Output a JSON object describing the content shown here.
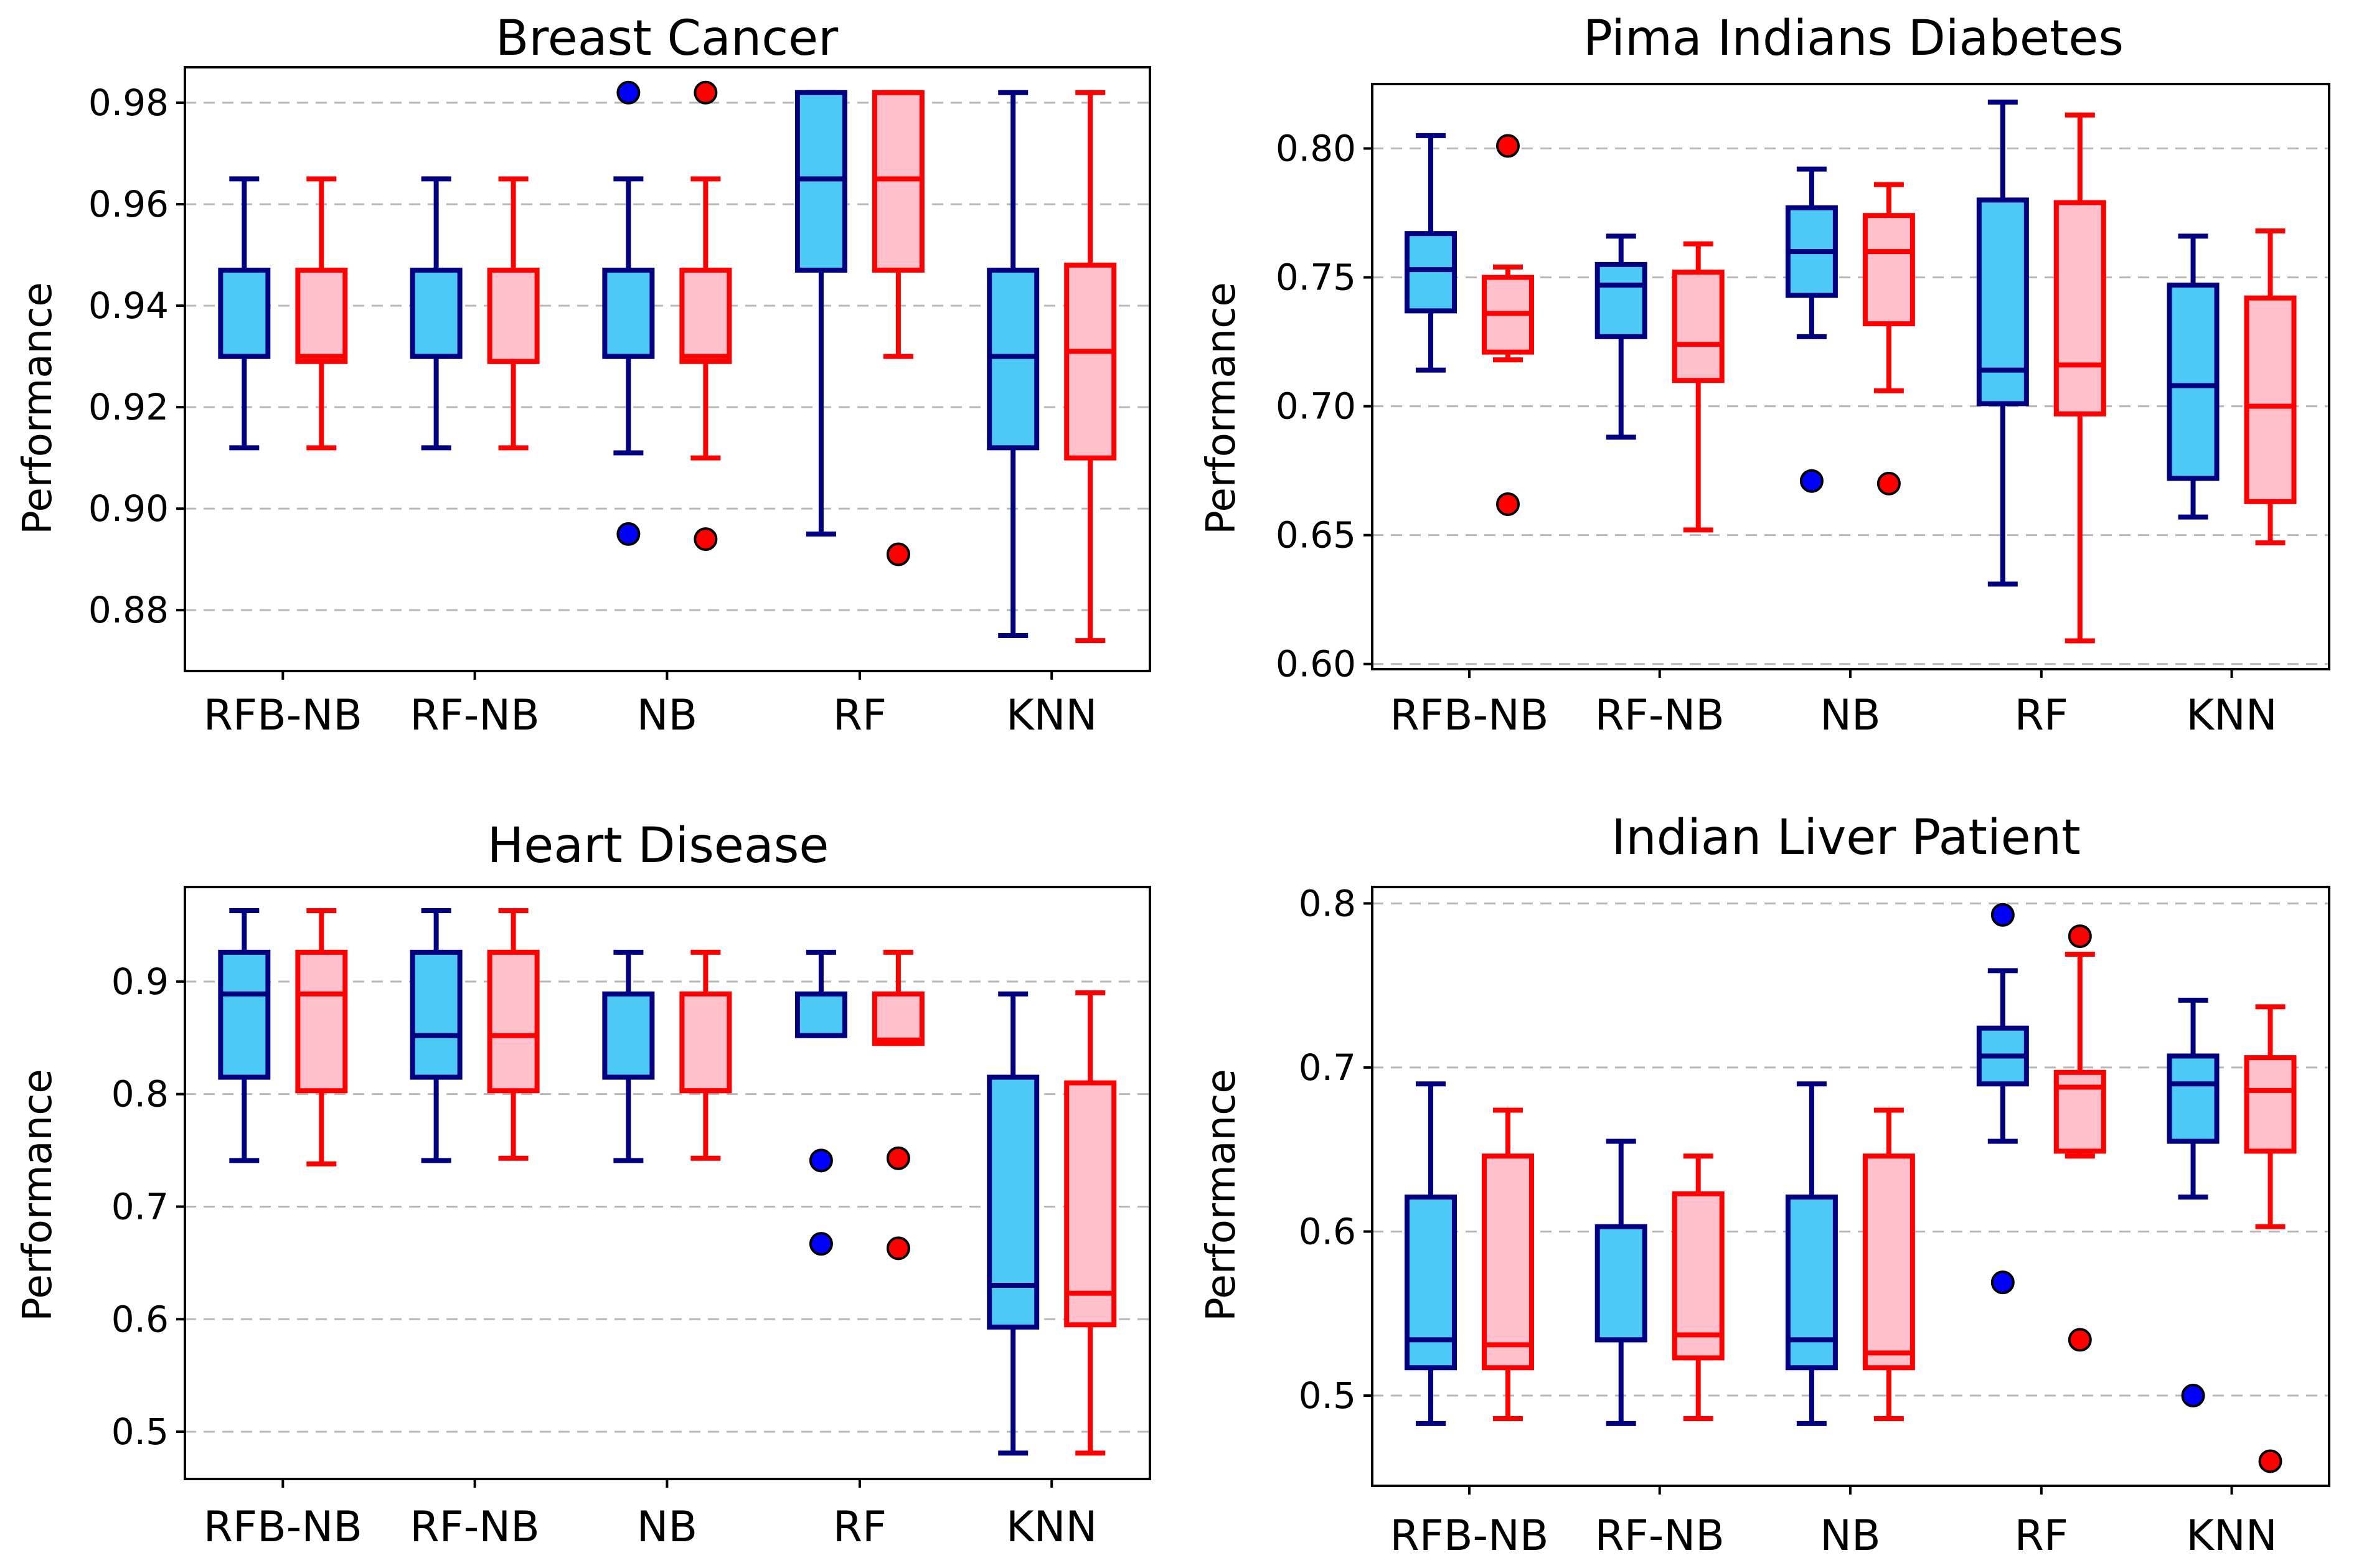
{
  "figure": {
    "colors": {
      "blue_fill": "#4dc9f6",
      "blue_edge": "#000080",
      "red_fill": "#ffc0cb",
      "red_edge": "#ff0000",
      "outlier_edge": "#000000"
    }
  },
  "chart_data": [
    {
      "type": "box",
      "title": "Breast Cancer",
      "ylabel": "Performance",
      "ylim": [
        0.868,
        0.987
      ],
      "yticks": [
        0.88,
        0.9,
        0.92,
        0.94,
        0.96,
        0.98
      ],
      "ytick_labels": [
        "0.88",
        "0.90",
        "0.92",
        "0.94",
        "0.96",
        "0.98"
      ],
      "categories": [
        "RFB-NB",
        "RF-NB",
        "NB",
        "RF",
        "KNN"
      ],
      "series": [
        {
          "name": "blue",
          "boxes": [
            {
              "whislo": 0.912,
              "q1": 0.93,
              "med": 0.93,
              "q3": 0.947,
              "whishi": 0.965,
              "fliers": []
            },
            {
              "whislo": 0.912,
              "q1": 0.93,
              "med": 0.93,
              "q3": 0.947,
              "whishi": 0.965,
              "fliers": []
            },
            {
              "whislo": 0.911,
              "q1": 0.93,
              "med": 0.93,
              "q3": 0.947,
              "whishi": 0.965,
              "fliers": [
                0.982,
                0.895
              ]
            },
            {
              "whislo": 0.895,
              "q1": 0.947,
              "med": 0.965,
              "q3": 0.982,
              "whishi": 0.982,
              "fliers": []
            },
            {
              "whislo": 0.875,
              "q1": 0.912,
              "med": 0.93,
              "q3": 0.947,
              "whishi": 0.982,
              "fliers": []
            }
          ]
        },
        {
          "name": "red",
          "boxes": [
            {
              "whislo": 0.912,
              "q1": 0.929,
              "med": 0.93,
              "q3": 0.947,
              "whishi": 0.965,
              "fliers": []
            },
            {
              "whislo": 0.912,
              "q1": 0.929,
              "med": 0.929,
              "q3": 0.947,
              "whishi": 0.965,
              "fliers": []
            },
            {
              "whislo": 0.91,
              "q1": 0.929,
              "med": 0.93,
              "q3": 0.947,
              "whishi": 0.965,
              "fliers": [
                0.982,
                0.894
              ]
            },
            {
              "whislo": 0.93,
              "q1": 0.947,
              "med": 0.965,
              "q3": 0.982,
              "whishi": 0.982,
              "fliers": [
                0.891
              ]
            },
            {
              "whislo": 0.874,
              "q1": 0.91,
              "med": 0.931,
              "q3": 0.948,
              "whishi": 0.982,
              "fliers": []
            }
          ]
        }
      ]
    },
    {
      "type": "box",
      "title": "Pima Indians Diabetes",
      "ylabel": "Performance",
      "ylim": [
        0.598,
        0.825
      ],
      "yticks": [
        0.6,
        0.65,
        0.7,
        0.75,
        0.8
      ],
      "ytick_labels": [
        "0.60",
        "0.65",
        "0.70",
        "0.75",
        "0.80"
      ],
      "categories": [
        "RFB-NB",
        "RF-NB",
        "NB",
        "RF",
        "KNN"
      ],
      "series": [
        {
          "name": "blue",
          "boxes": [
            {
              "whislo": 0.714,
              "q1": 0.737,
              "med": 0.753,
              "q3": 0.767,
              "whishi": 0.805,
              "fliers": []
            },
            {
              "whislo": 0.688,
              "q1": 0.727,
              "med": 0.747,
              "q3": 0.755,
              "whishi": 0.766,
              "fliers": []
            },
            {
              "whislo": 0.727,
              "q1": 0.743,
              "med": 0.76,
              "q3": 0.777,
              "whishi": 0.792,
              "fliers": [
                0.671
              ]
            },
            {
              "whislo": 0.631,
              "q1": 0.701,
              "med": 0.714,
              "q3": 0.78,
              "whishi": 0.818,
              "fliers": []
            },
            {
              "whislo": 0.657,
              "q1": 0.672,
              "med": 0.708,
              "q3": 0.747,
              "whishi": 0.766,
              "fliers": []
            }
          ]
        },
        {
          "name": "red",
          "boxes": [
            {
              "whislo": 0.718,
              "q1": 0.721,
              "med": 0.736,
              "q3": 0.75,
              "whishi": 0.754,
              "fliers": [
                0.801,
                0.662
              ]
            },
            {
              "whislo": 0.652,
              "q1": 0.71,
              "med": 0.724,
              "q3": 0.752,
              "whishi": 0.763,
              "fliers": []
            },
            {
              "whislo": 0.706,
              "q1": 0.732,
              "med": 0.76,
              "q3": 0.774,
              "whishi": 0.786,
              "fliers": [
                0.67
              ]
            },
            {
              "whislo": 0.609,
              "q1": 0.697,
              "med": 0.716,
              "q3": 0.779,
              "whishi": 0.813,
              "fliers": []
            },
            {
              "whislo": 0.647,
              "q1": 0.663,
              "med": 0.7,
              "q3": 0.742,
              "whishi": 0.768,
              "fliers": []
            }
          ]
        }
      ]
    },
    {
      "type": "box",
      "title": "Heart Disease",
      "ylabel": "Performance",
      "ylim": [
        0.458,
        0.984
      ],
      "yticks": [
        0.5,
        0.6,
        0.7,
        0.8,
        0.9
      ],
      "ytick_labels": [
        "0.5",
        "0.6",
        "0.7",
        "0.8",
        "0.9"
      ],
      "categories": [
        "RFB-NB",
        "RF-NB",
        "NB",
        "RF",
        "KNN"
      ],
      "series": [
        {
          "name": "blue",
          "boxes": [
            {
              "whislo": 0.741,
              "q1": 0.815,
              "med": 0.889,
              "q3": 0.926,
              "whishi": 0.963,
              "fliers": []
            },
            {
              "whislo": 0.741,
              "q1": 0.815,
              "med": 0.852,
              "q3": 0.926,
              "whishi": 0.963,
              "fliers": []
            },
            {
              "whislo": 0.741,
              "q1": 0.815,
              "med": 0.815,
              "q3": 0.889,
              "whishi": 0.926,
              "fliers": []
            },
            {
              "whislo": 0.852,
              "q1": 0.852,
              "med": 0.852,
              "q3": 0.889,
              "whishi": 0.926,
              "fliers": [
                0.741,
                0.667
              ]
            },
            {
              "whislo": 0.481,
              "q1": 0.593,
              "med": 0.63,
              "q3": 0.815,
              "whishi": 0.889,
              "fliers": []
            }
          ]
        },
        {
          "name": "red",
          "boxes": [
            {
              "whislo": 0.738,
              "q1": 0.803,
              "med": 0.889,
              "q3": 0.926,
              "whishi": 0.963,
              "fliers": []
            },
            {
              "whislo": 0.743,
              "q1": 0.803,
              "med": 0.852,
              "q3": 0.926,
              "whishi": 0.963,
              "fliers": []
            },
            {
              "whislo": 0.743,
              "q1": 0.803,
              "med": 0.803,
              "q3": 0.889,
              "whishi": 0.926,
              "fliers": []
            },
            {
              "whislo": 0.845,
              "q1": 0.845,
              "med": 0.848,
              "q3": 0.889,
              "whishi": 0.926,
              "fliers": [
                0.743,
                0.663
              ]
            },
            {
              "whislo": 0.481,
              "q1": 0.595,
              "med": 0.623,
              "q3": 0.81,
              "whishi": 0.89,
              "fliers": []
            }
          ]
        }
      ]
    },
    {
      "type": "box",
      "title": "Indian Liver Patient",
      "ylabel": "Performance",
      "ylim": [
        0.445,
        0.81
      ],
      "yticks": [
        0.5,
        0.6,
        0.7,
        0.8
      ],
      "ytick_labels": [
        "0.5",
        "0.6",
        "0.7",
        "0.8"
      ],
      "categories": [
        "RFB-NB",
        "RF-NB",
        "NB",
        "RF",
        "KNN"
      ],
      "series": [
        {
          "name": "blue",
          "boxes": [
            {
              "whislo": 0.483,
              "q1": 0.517,
              "med": 0.534,
              "q3": 0.621,
              "whishi": 0.69,
              "fliers": []
            },
            {
              "whislo": 0.483,
              "q1": 0.534,
              "med": 0.534,
              "q3": 0.603,
              "whishi": 0.655,
              "fliers": []
            },
            {
              "whislo": 0.483,
              "q1": 0.517,
              "med": 0.534,
              "q3": 0.621,
              "whishi": 0.69,
              "fliers": []
            },
            {
              "whislo": 0.655,
              "q1": 0.69,
              "med": 0.707,
              "q3": 0.724,
              "whishi": 0.759,
              "fliers": [
                0.793,
                0.569
              ]
            },
            {
              "whislo": 0.621,
              "q1": 0.655,
              "med": 0.69,
              "q3": 0.707,
              "whishi": 0.741,
              "fliers": [
                0.5
              ]
            }
          ]
        },
        {
          "name": "red",
          "boxes": [
            {
              "whislo": 0.486,
              "q1": 0.517,
              "med": 0.531,
              "q3": 0.646,
              "whishi": 0.674,
              "fliers": []
            },
            {
              "whislo": 0.486,
              "q1": 0.523,
              "med": 0.537,
              "q3": 0.623,
              "whishi": 0.646,
              "fliers": []
            },
            {
              "whislo": 0.486,
              "q1": 0.517,
              "med": 0.526,
              "q3": 0.646,
              "whishi": 0.674,
              "fliers": []
            },
            {
              "whislo": 0.646,
              "q1": 0.649,
              "med": 0.688,
              "q3": 0.697,
              "whishi": 0.769,
              "fliers": [
                0.78,
                0.534
              ]
            },
            {
              "whislo": 0.603,
              "q1": 0.649,
              "med": 0.686,
              "q3": 0.706,
              "whishi": 0.737,
              "fliers": [
                0.46
              ]
            }
          ]
        }
      ]
    }
  ]
}
